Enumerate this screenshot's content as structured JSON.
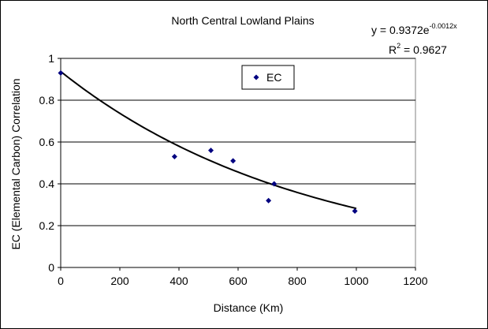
{
  "chart_data": {
    "type": "scatter",
    "title": "North Central Lowland Plains",
    "xlabel": "Distance (Km)",
    "ylabel": "EC (Elemental Carbon) Correlation",
    "xlim": [
      0,
      1200
    ],
    "ylim": [
      0,
      1
    ],
    "x_ticks": [
      "0",
      "200",
      "400",
      "600",
      "800",
      "1000",
      "1200"
    ],
    "y_ticks": [
      "0",
      "0.2",
      "0.4",
      "0.6",
      "0.8",
      "1"
    ],
    "grid": "horizontal",
    "legend_position": "top-center",
    "series": [
      {
        "name": "EC",
        "color": "#000080",
        "marker": "diamond",
        "points": [
          {
            "x": 0,
            "y": 0.93
          },
          {
            "x": 385,
            "y": 0.53
          },
          {
            "x": 508,
            "y": 0.56
          },
          {
            "x": 583,
            "y": 0.51
          },
          {
            "x": 703,
            "y": 0.32
          },
          {
            "x": 722,
            "y": 0.4
          },
          {
            "x": 995,
            "y": 0.27
          }
        ]
      }
    ],
    "trendline": {
      "type": "exponential",
      "a": 0.9372,
      "b": -0.0012,
      "x_range": [
        0,
        1000
      ],
      "color": "#000000"
    },
    "annotations": {
      "equation_prefix": "y = 0.9372e",
      "equation_exponent": "-0.0012x",
      "r2_prefix": "R",
      "r2_exponent": "2",
      "r2_suffix": " = 0.9627"
    }
  }
}
